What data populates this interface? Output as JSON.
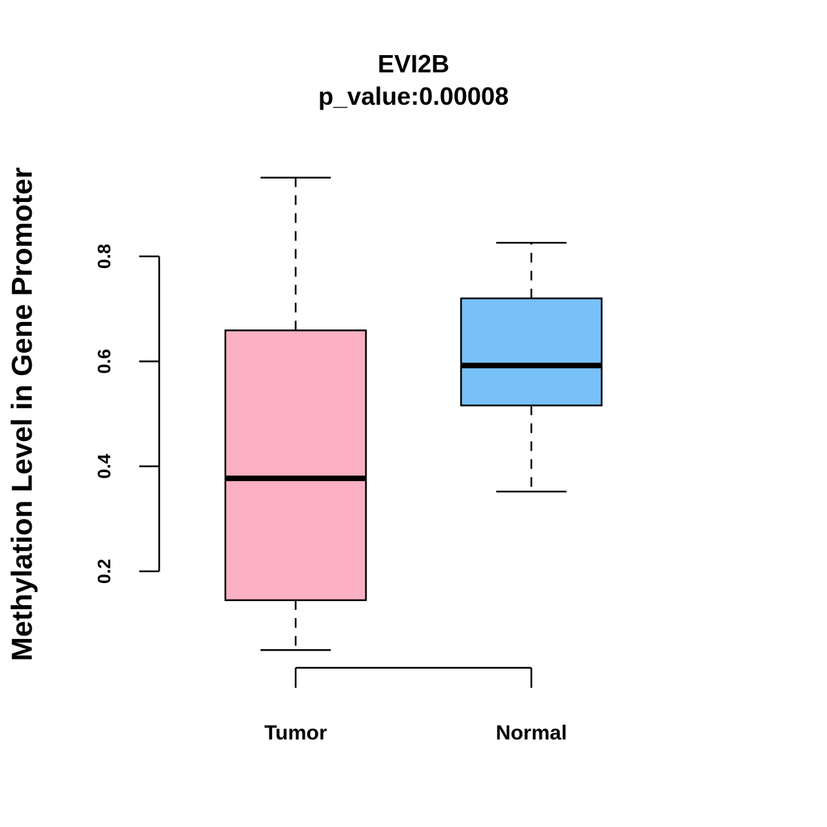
{
  "chart_data": {
    "type": "boxplot",
    "title": "EVI2B",
    "subtitle": "p_value:0.00008",
    "xlabel": "",
    "ylabel": "Methylation Level in Gene Promoter",
    "ylim": [
      0.2,
      0.8
    ],
    "yticks": [
      0.2,
      0.4,
      0.6,
      0.8
    ],
    "ytick_labels": [
      "0.2",
      "0.4",
      "0.6",
      "0.8"
    ],
    "categories": [
      "Tumor",
      "Normal"
    ],
    "series": [
      {
        "name": "Tumor",
        "color": "#FBB1C3",
        "min": 0.05,
        "q1": 0.145,
        "median": 0.377,
        "q3": 0.659,
        "max": 0.95
      },
      {
        "name": "Normal",
        "color": "#78C1F8",
        "min": 0.352,
        "q1": 0.516,
        "median": 0.592,
        "q3": 0.72,
        "max": 0.826
      }
    ]
  }
}
